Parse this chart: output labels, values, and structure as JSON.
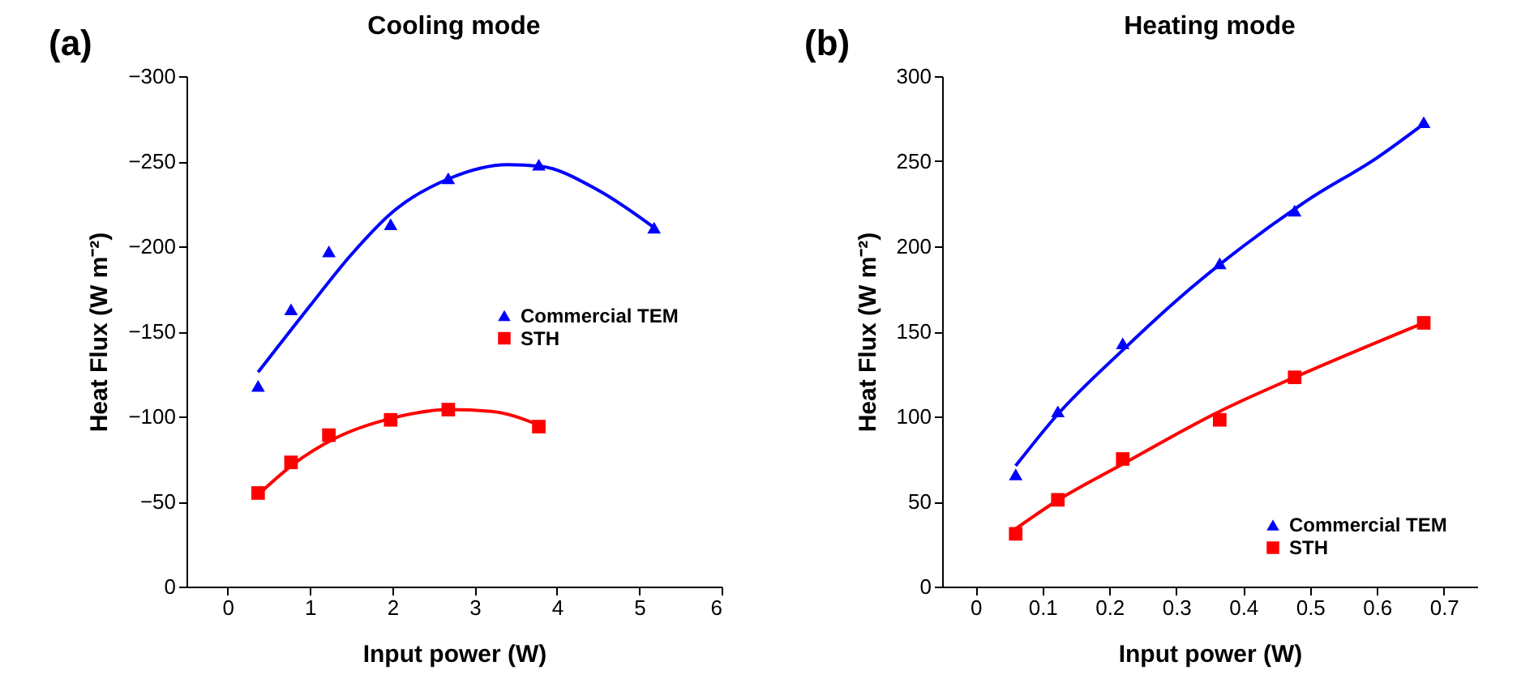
{
  "chart_data": [
    {
      "type": "scatter",
      "title": "Cooling mode",
      "xlabel": "Input power (W)",
      "ylabel": "Heat Flux (W m⁻²)",
      "annotations": [
        "(a)"
      ],
      "xlim": [
        -0.5,
        6
      ],
      "xticks": [
        0,
        1,
        2,
        3,
        4,
        5,
        6
      ],
      "ylim": [
        0,
        -300
      ],
      "yticks": [
        -300,
        -250,
        -200,
        -150,
        -100,
        -50,
        0
      ],
      "grid": false,
      "legend": "right",
      "series": [
        {
          "name": "Commercial TEM",
          "color": "#0000ff",
          "marker": "triangle",
          "x": [
            0.37,
            0.77,
            1.23,
            1.98,
            2.68,
            3.78,
            5.18
          ],
          "values": [
            -118,
            -163,
            -197,
            -213,
            -240,
            -248,
            -211
          ]
        },
        {
          "name": "STH",
          "color": "#ff0000",
          "marker": "square",
          "x": [
            0.37,
            0.77,
            1.23,
            1.98,
            2.68,
            3.78
          ],
          "values": [
            -55,
            -73,
            -89,
            -98,
            -104,
            -94
          ]
        },
        {
          "type": "line",
          "color": "#0000ff",
          "x": [
            0.37,
            1,
            1.5,
            2,
            2.7,
            3.4,
            3.8,
            4.5,
            5.18
          ],
          "values": [
            -126,
            -165,
            -195,
            -220,
            -240,
            -248,
            -247,
            -233,
            -211
          ]
        },
        {
          "type": "line",
          "color": "#ff0000",
          "x": [
            0.37,
            0.8,
            1.3,
            2,
            2.7,
            3.2,
            3.78
          ],
          "values": [
            -54,
            -72,
            -87,
            -99,
            -104,
            -103,
            -95
          ]
        }
      ]
    },
    {
      "type": "scatter",
      "title": "Heating mode",
      "xlabel": "Input power (W)",
      "ylabel": "Heat Flux (W m⁻²)",
      "annotations": [
        "(b)"
      ],
      "xlim": [
        -0.05,
        0.75
      ],
      "xticks": [
        {
          "value": 0,
          "label": "0"
        },
        0.1,
        0.2,
        0.3,
        0.4,
        0.5,
        0.6,
        0.7
      ],
      "ylim": [
        0,
        300
      ],
      "yticks": [
        0,
        50,
        100,
        150,
        200,
        250,
        300
      ],
      "grid": false,
      "legend": "bottom right",
      "series": [
        {
          "name": "Commercial TEM",
          "color": "#0000ff",
          "marker": "triangle",
          "x": [
            0.06,
            0.123,
            0.22,
            0.365,
            0.477,
            0.67
          ],
          "values": [
            66,
            103,
            143,
            190,
            221,
            273
          ]
        },
        {
          "name": "STH",
          "color": "#ff0000",
          "marker": "square",
          "x": [
            0.06,
            0.123,
            0.22,
            0.365,
            0.477,
            0.67
          ],
          "values": [
            31,
            51,
            75,
            98,
            123,
            155
          ]
        },
        {
          "type": "line",
          "color": "#0000ff",
          "x": [
            0.06,
            0.12,
            0.22,
            0.3,
            0.4,
            0.5,
            0.6,
            0.67
          ],
          "values": [
            71,
            100,
            139,
            168,
            200,
            228,
            252,
            272
          ]
        },
        {
          "type": "line",
          "color": "#ff0000",
          "x": [
            0.06,
            0.12,
            0.22,
            0.365,
            0.477,
            0.67
          ],
          "values": [
            34,
            50,
            72,
            103,
            123,
            155
          ]
        }
      ]
    }
  ]
}
